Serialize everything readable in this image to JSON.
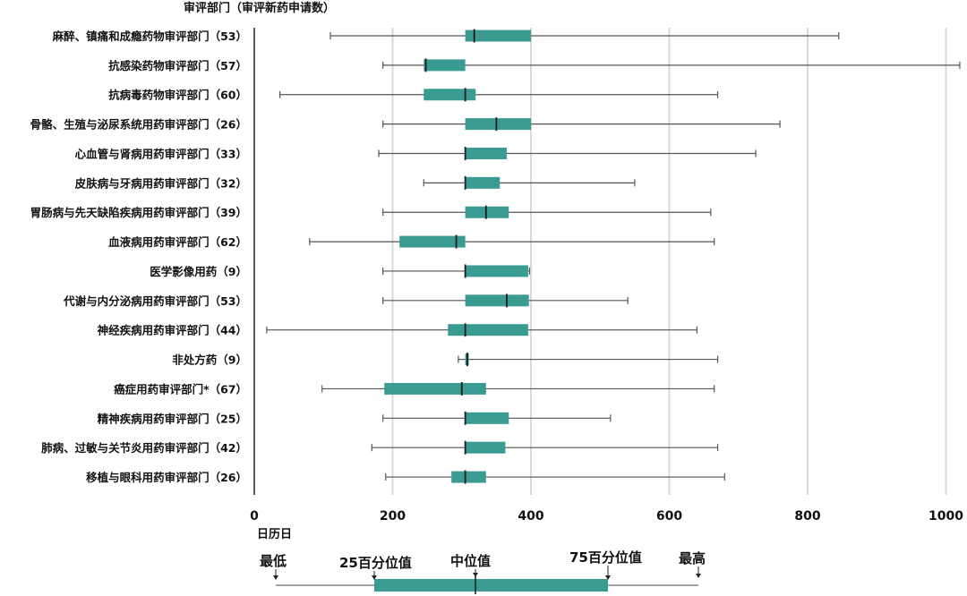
{
  "chart_data": {
    "type": "boxplot",
    "orientation": "horizontal",
    "ylabel": "审评部门（审评新药申请数）",
    "xlabel": "日历日",
    "xlim": [
      0,
      1030
    ],
    "xticks": [
      0,
      200,
      400,
      600,
      800,
      1000
    ],
    "grid": "vertical",
    "box_color": "#3a9b92",
    "categories": [
      "麻醉、镇痛和成瘾药物审评部门（53）",
      "抗感染药物审评部门（57）",
      "抗病毒药物审评部门（60）",
      "骨骼、生殖与泌尿系统用药审评部门（26）",
      "心血管与肾病用药审评部门（33）",
      "皮肤病与牙病用药审评部门（32）",
      "胃肠病与先天缺陷疾病用药审评部门（39）",
      "血液病用药审评部门（62）",
      "医学影像用药（9）",
      "代谢与内分泌病用药审评部门（53）",
      "神经疾病用药审评部门（44）",
      "非处方药（9）",
      "癌症用药审评部门*（67）",
      "精神疾病用药审评部门（25）",
      "肺病、过敏与关节炎用药审评部门（42）",
      "移植与眼科用药审评部门（26）"
    ],
    "series": [
      {
        "min": [
          110,
          186,
          37,
          186,
          180,
          245,
          186,
          80,
          186,
          186,
          18,
          295,
          98,
          186,
          170,
          190
        ],
        "q1": [
          305,
          245,
          245,
          305,
          305,
          305,
          305,
          210,
          305,
          305,
          280,
          305,
          188,
          305,
          305,
          285
        ],
        "median": [
          318,
          248,
          305,
          350,
          305,
          305,
          335,
          292,
          305,
          365,
          305,
          308,
          300,
          305,
          305,
          305
        ],
        "q3": [
          400,
          305,
          320,
          400,
          365,
          355,
          368,
          305,
          396,
          397,
          396,
          308,
          335,
          368,
          363,
          335
        ],
        "max": [
          845,
          1020,
          670,
          760,
          725,
          550,
          660,
          665,
          398,
          540,
          640,
          670,
          665,
          515,
          670,
          680
        ]
      }
    ]
  },
  "legend": {
    "min_label": "最低",
    "q1_label": "25百分位值",
    "median_label": "中位值",
    "q3_label": "75百分位值",
    "max_label": "最高"
  }
}
